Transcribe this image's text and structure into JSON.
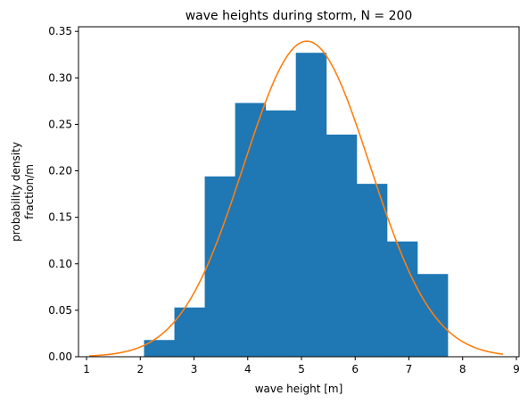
{
  "chart_data": {
    "type": "bar",
    "title": "wave heights during storm, N = 200",
    "xlabel": "wave height [m]",
    "ylabel": [
      "probability density",
      "fraction/m"
    ],
    "xlim": [
      0.85,
      9.05
    ],
    "ylim": [
      0,
      0.355
    ],
    "xticks": [
      1,
      2,
      3,
      4,
      5,
      6,
      7,
      8,
      9
    ],
    "xtick_labels": [
      "1",
      "2",
      "3",
      "4",
      "5",
      "6",
      "7",
      "8",
      "9"
    ],
    "yticks": [
      0,
      0.05,
      0.1,
      0.15,
      0.2,
      0.25,
      0.3,
      0.35
    ],
    "ytick_labels": [
      "0.00",
      "0.05",
      "0.10",
      "0.15",
      "0.20",
      "0.25",
      "0.30",
      "0.35"
    ],
    "grid": false,
    "histogram": {
      "bin_edges": [
        2.07,
        2.635,
        3.2,
        3.765,
        4.33,
        4.895,
        5.46,
        6.025,
        6.59,
        7.155,
        7.72
      ],
      "values": [
        0.018,
        0.053,
        0.194,
        0.273,
        0.265,
        0.327,
        0.239,
        0.186,
        0.124,
        0.089
      ],
      "color": "#1f77b4"
    },
    "curve": {
      "type": "line",
      "mean": 5.1,
      "std": 1.175,
      "x_range": [
        1.05,
        8.75
      ],
      "color": "#ff7f0e"
    }
  }
}
